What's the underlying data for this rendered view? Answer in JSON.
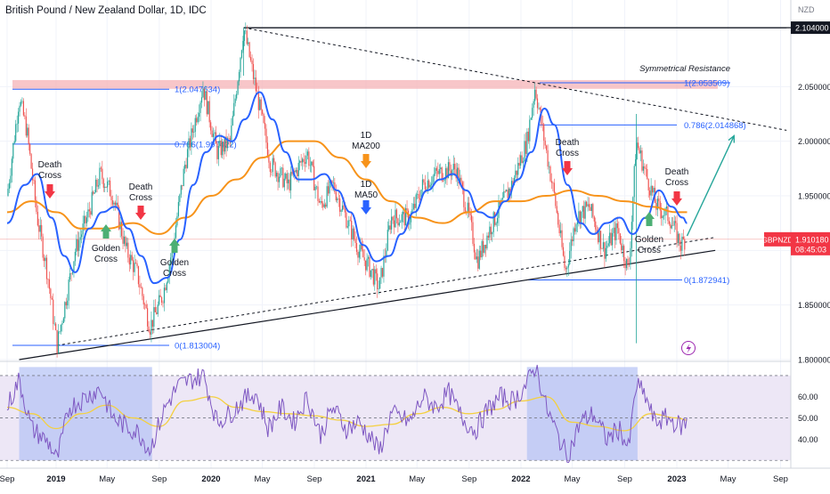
{
  "header": {
    "title": "British Pound / New Zealand Dollar, 1D, IDC",
    "currency": "NZD"
  },
  "colors": {
    "price_up": "#26a69a",
    "price_down": "#ef5350",
    "ma50": "#2962ff",
    "ma200": "#f7931a",
    "fib": "#2962ff",
    "resistance_zone": "#f6b3b7",
    "rsi": "#7e57c2",
    "rsi_ma": "#f4d03f",
    "rsi_band": "#ede7f6",
    "rsi_highlight": "#b3c2f5",
    "arrow_down": "#f23645",
    "arrow_up": "#4caf74",
    "projection": "#26a69a",
    "price_badge": "#f23645"
  },
  "chart_data": [
    {
      "type": "candlestick",
      "title": "British Pound / New Zealand Dollar, 1D, IDC",
      "series_names": [
        "1D MA200",
        "1D MA50"
      ],
      "x_ticks": [
        "Sep",
        "2019",
        "May",
        "Sep",
        "2020",
        "May",
        "Sep",
        "2021",
        "May",
        "Sep",
        "2022",
        "May",
        "Sep",
        "2023",
        "May",
        "Sep"
      ],
      "y_ticks": [
        "1.800000",
        "1.850000",
        "1.900000",
        "1.950000",
        "2.000000",
        "2.050000",
        "2.104000"
      ],
      "ylim": [
        1.8,
        2.104
      ],
      "grid": true,
      "price_approx": [
        [
          "2018-09-01",
          1.95
        ],
        [
          "2018-10-01",
          2.04
        ],
        [
          "2018-10-20",
          2.01
        ],
        [
          "2018-11-15",
          1.93
        ],
        [
          "2018-12-10",
          1.88
        ],
        [
          "2019-01-03",
          1.813
        ],
        [
          "2019-02-15",
          1.9
        ],
        [
          "2019-03-15",
          1.93
        ],
        [
          "2019-04-15",
          1.97
        ],
        [
          "2019-05-15",
          1.95
        ],
        [
          "2019-06-15",
          1.9
        ],
        [
          "2019-07-10",
          1.88
        ],
        [
          "2019-08-10",
          1.83
        ],
        [
          "2019-09-10",
          1.86
        ],
        [
          "2019-10-01",
          1.9
        ],
        [
          "2019-11-01",
          1.98
        ],
        [
          "2019-12-13",
          2.05
        ],
        [
          "2020-01-15",
          1.99
        ],
        [
          "2020-02-15",
          2.0
        ],
        [
          "2020-03-18",
          2.104
        ],
        [
          "2020-04-20",
          2.04
        ],
        [
          "2020-05-20",
          1.98
        ],
        [
          "2020-07-01",
          1.96
        ],
        [
          "2020-08-15",
          1.99
        ],
        [
          "2020-09-15",
          1.94
        ],
        [
          "2020-10-15",
          1.96
        ],
        [
          "2020-11-15",
          1.93
        ],
        [
          "2020-12-15",
          1.9
        ],
        [
          "2021-01-15",
          1.88
        ],
        [
          "2021-02-01",
          1.865
        ],
        [
          "2021-03-01",
          1.93
        ],
        [
          "2021-04-15",
          1.93
        ],
        [
          "2021-05-15",
          1.96
        ],
        [
          "2021-06-15",
          1.97
        ],
        [
          "2021-08-01",
          1.975
        ],
        [
          "2021-09-01",
          1.93
        ],
        [
          "2021-09-20",
          1.89
        ],
        [
          "2021-10-20",
          1.92
        ],
        [
          "2021-12-10",
          1.96
        ],
        [
          "2022-01-15",
          2.0
        ],
        [
          "2022-02-03",
          2.05
        ],
        [
          "2022-02-25",
          2.0
        ],
        [
          "2022-03-20",
          1.95
        ],
        [
          "2022-04-15",
          1.88
        ],
        [
          "2022-05-10",
          1.93
        ],
        [
          "2022-06-10",
          1.94
        ],
        [
          "2022-07-15",
          1.9
        ],
        [
          "2022-08-15",
          1.92
        ],
        [
          "2022-09-10",
          1.88
        ],
        [
          "2022-09-28",
          2.0
        ],
        [
          "2022-10-20",
          1.97
        ],
        [
          "2022-11-15",
          1.94
        ],
        [
          "2022-12-15",
          1.93
        ],
        [
          "2023-01-10",
          1.905
        ],
        [
          "2023-01-20",
          1.91
        ]
      ],
      "ma50_approx": [
        [
          "2018-09-01",
          1.925
        ],
        [
          "2018-10-15",
          1.96
        ],
        [
          "2018-11-15",
          1.97
        ],
        [
          "2018-12-20",
          1.93
        ],
        [
          "2019-01-20",
          1.895
        ],
        [
          "2019-02-15",
          1.88
        ],
        [
          "2019-03-20",
          1.92
        ],
        [
          "2019-04-20",
          1.935
        ],
        [
          "2019-05-20",
          1.94
        ],
        [
          "2019-06-20",
          1.92
        ],
        [
          "2019-07-20",
          1.895
        ],
        [
          "2019-08-20",
          1.87
        ],
        [
          "2019-09-20",
          1.875
        ],
        [
          "2019-10-20",
          1.91
        ],
        [
          "2019-11-20",
          1.96
        ],
        [
          "2019-12-20",
          1.99
        ],
        [
          "2020-01-20",
          2.005
        ],
        [
          "2020-02-20",
          2.0
        ],
        [
          "2020-03-20",
          2.02
        ],
        [
          "2020-04-25",
          2.045
        ],
        [
          "2020-05-25",
          2.02
        ],
        [
          "2020-06-25",
          1.99
        ],
        [
          "2020-07-25",
          1.965
        ],
        [
          "2020-08-25",
          1.965
        ],
        [
          "2020-09-25",
          1.97
        ],
        [
          "2020-10-25",
          1.955
        ],
        [
          "2020-11-25",
          1.935
        ],
        [
          "2020-12-25",
          1.905
        ],
        [
          "2021-01-25",
          1.89
        ],
        [
          "2021-02-25",
          1.895
        ],
        [
          "2021-03-25",
          1.915
        ],
        [
          "2021-04-25",
          1.935
        ],
        [
          "2021-05-25",
          1.955
        ],
        [
          "2021-06-25",
          1.965
        ],
        [
          "2021-07-25",
          1.97
        ],
        [
          "2021-08-25",
          1.955
        ],
        [
          "2021-09-25",
          1.935
        ],
        [
          "2021-10-25",
          1.93
        ],
        [
          "2021-11-25",
          1.945
        ],
        [
          "2021-12-25",
          1.965
        ],
        [
          "2022-01-25",
          1.99
        ],
        [
          "2022-02-25",
          2.03
        ],
        [
          "2022-03-20",
          2.015
        ],
        [
          "2022-04-20",
          1.96
        ],
        [
          "2022-05-20",
          1.925
        ],
        [
          "2022-06-20",
          1.915
        ],
        [
          "2022-07-20",
          1.925
        ],
        [
          "2022-08-20",
          1.93
        ],
        [
          "2022-09-20",
          1.915
        ],
        [
          "2022-10-20",
          1.93
        ],
        [
          "2022-11-20",
          1.955
        ],
        [
          "2022-12-20",
          1.94
        ],
        [
          "2023-01-15",
          1.93
        ],
        [
          "2023-01-25",
          1.925
        ]
      ],
      "ma200_approx": [
        [
          "2018-09-01",
          1.935
        ],
        [
          "2018-11-01",
          1.945
        ],
        [
          "2019-01-01",
          1.935
        ],
        [
          "2019-03-01",
          1.92
        ],
        [
          "2019-05-01",
          1.92
        ],
        [
          "2019-07-01",
          1.925
        ],
        [
          "2019-09-01",
          1.915
        ],
        [
          "2019-11-01",
          1.93
        ],
        [
          "2020-01-01",
          1.95
        ],
        [
          "2020-03-01",
          1.965
        ],
        [
          "2020-05-01",
          1.985
        ],
        [
          "2020-07-01",
          2.0
        ],
        [
          "2020-09-01",
          2.0
        ],
        [
          "2020-11-01",
          1.985
        ],
        [
          "2021-01-01",
          1.965
        ],
        [
          "2021-03-01",
          1.945
        ],
        [
          "2021-05-01",
          1.93
        ],
        [
          "2021-07-01",
          1.925
        ],
        [
          "2021-09-01",
          1.935
        ],
        [
          "2021-11-01",
          1.945
        ],
        [
          "2022-01-01",
          1.945
        ],
        [
          "2022-03-01",
          1.95
        ],
        [
          "2022-05-01",
          1.955
        ],
        [
          "2022-07-01",
          1.95
        ],
        [
          "2022-09-01",
          1.945
        ],
        [
          "2022-11-01",
          1.94
        ],
        [
          "2023-01-01",
          1.935
        ],
        [
          "2023-01-25",
          1.935
        ]
      ],
      "current_price": "1.910180",
      "price_label": "GBPNZD",
      "countdown": "08:45:03",
      "resistance_zone": [
        2.048,
        2.056
      ],
      "fib_levels": [
        {
          "label": "1(2.047634)",
          "value": 2.047634
        },
        {
          "label": "0.786(1.997422)",
          "value": 1.997422
        },
        {
          "label": "0(1.813004)",
          "value": 1.813004
        },
        {
          "label": "1(2.053509)",
          "value": 2.053509
        },
        {
          "label": "0.786(2.014868)",
          "value": 2.014868
        },
        {
          "label": "0(1.872941)",
          "value": 1.872941
        }
      ],
      "annotations": [
        {
          "text": "Symmetrical Resistance"
        },
        {
          "text": "1D MA200"
        },
        {
          "text": "1D MA50"
        },
        {
          "text": "Death Cross",
          "signal": "down"
        },
        {
          "text": "Death Cross",
          "signal": "down"
        },
        {
          "text": "Death Cross",
          "signal": "down"
        },
        {
          "text": "Death Cross",
          "signal": "down"
        },
        {
          "text": "Golden Cross",
          "signal": "up"
        },
        {
          "text": "Golden Cross",
          "signal": "up"
        },
        {
          "text": "Golden Cross",
          "signal": "up"
        }
      ],
      "trendlines": [
        {
          "style": "solid",
          "from": [
            "2020-03-18",
            2.104
          ],
          "to": [
            "2023-09-15",
            2.104
          ]
        },
        {
          "style": "dashed",
          "from": [
            "2020-03-18",
            2.104
          ],
          "to": [
            "2023-09-15",
            2.01
          ]
        },
        {
          "style": "dashed",
          "from": [
            "2019-01-03",
            1.813
          ],
          "to": [
            "2023-04-01",
            1.912
          ]
        },
        {
          "style": "solid",
          "from": [
            "2018-10-01",
            1.8
          ],
          "to": [
            "2023-04-01",
            1.9
          ]
        }
      ],
      "projection": [
        [
          "2023-01-25",
          1.91
        ],
        [
          "2023-05-15",
          2.005
        ]
      ]
    },
    {
      "type": "line",
      "name": "RSI",
      "y_ticks": [
        "40.00",
        "50.00",
        "60.00"
      ],
      "ylim": [
        28,
        75
      ],
      "levels": [
        70,
        50,
        30
      ],
      "rsi_approx": [
        [
          "2018-09-01",
          55
        ],
        [
          "2018-10-01",
          68
        ],
        [
          "2018-11-01",
          45
        ],
        [
          "2018-12-15",
          38
        ],
        [
          "2019-01-03",
          30
        ],
        [
          "2019-02-01",
          55
        ],
        [
          "2019-03-15",
          60
        ],
        [
          "2019-04-15",
          64
        ],
        [
          "2019-05-15",
          50
        ],
        [
          "2019-06-15",
          46
        ],
        [
          "2019-07-15",
          43
        ],
        [
          "2019-08-10",
          35
        ],
        [
          "2019-09-15",
          55
        ],
        [
          "2019-10-15",
          65
        ],
        [
          "2019-11-15",
          68
        ],
        [
          "2019-12-15",
          70
        ],
        [
          "2020-01-15",
          48
        ],
        [
          "2020-02-15",
          52
        ],
        [
          "2020-03-15",
          58
        ],
        [
          "2020-04-15",
          62
        ],
        [
          "2020-05-15",
          45
        ],
        [
          "2020-06-15",
          55
        ],
        [
          "2020-07-15",
          48
        ],
        [
          "2020-08-15",
          60
        ],
        [
          "2020-09-15",
          42
        ],
        [
          "2020-10-15",
          55
        ],
        [
          "2020-11-15",
          45
        ],
        [
          "2020-12-15",
          48
        ],
        [
          "2021-01-15",
          40
        ],
        [
          "2021-02-01",
          34
        ],
        [
          "2021-03-01",
          52
        ],
        [
          "2021-04-15",
          48
        ],
        [
          "2021-05-15",
          60
        ],
        [
          "2021-06-15",
          55
        ],
        [
          "2021-07-15",
          62
        ],
        [
          "2021-08-15",
          50
        ],
        [
          "2021-09-15",
          44
        ],
        [
          "2021-10-15",
          54
        ],
        [
          "2021-11-15",
          60
        ],
        [
          "2021-12-15",
          58
        ],
        [
          "2022-01-15",
          66
        ],
        [
          "2022-02-05",
          75
        ],
        [
          "2022-03-01",
          55
        ],
        [
          "2022-04-01",
          40
        ],
        [
          "2022-04-20",
          32
        ],
        [
          "2022-05-20",
          48
        ],
        [
          "2022-06-20",
          52
        ],
        [
          "2022-07-20",
          40
        ],
        [
          "2022-08-20",
          45
        ],
        [
          "2022-09-10",
          35
        ],
        [
          "2022-09-28",
          66
        ],
        [
          "2022-10-20",
          60
        ],
        [
          "2022-11-10",
          48
        ],
        [
          "2022-12-10",
          50
        ],
        [
          "2023-01-10",
          46
        ],
        [
          "2023-01-25",
          48
        ]
      ],
      "rsi_ma_approx": [
        [
          "2018-09-01",
          55
        ],
        [
          "2018-11-01",
          52
        ],
        [
          "2019-01-01",
          45
        ],
        [
          "2019-03-01",
          52
        ],
        [
          "2019-05-01",
          56
        ],
        [
          "2019-07-01",
          50
        ],
        [
          "2019-09-01",
          46
        ],
        [
          "2019-11-01",
          58
        ],
        [
          "2020-01-01",
          60
        ],
        [
          "2020-03-01",
          55
        ],
        [
          "2020-05-01",
          53
        ],
        [
          "2020-07-01",
          52
        ],
        [
          "2020-09-01",
          51
        ],
        [
          "2020-11-01",
          49
        ],
        [
          "2021-01-01",
          46
        ],
        [
          "2021-03-01",
          47
        ],
        [
          "2021-05-01",
          52
        ],
        [
          "2021-07-01",
          55
        ],
        [
          "2021-09-01",
          52
        ],
        [
          "2021-11-01",
          54
        ],
        [
          "2022-01-01",
          58
        ],
        [
          "2022-03-01",
          60
        ],
        [
          "2022-05-01",
          48
        ],
        [
          "2022-07-01",
          46
        ],
        [
          "2022-09-01",
          44
        ],
        [
          "2022-11-01",
          52
        ],
        [
          "2023-01-01",
          50
        ],
        [
          "2023-01-25",
          49
        ]
      ],
      "highlight_ranges": [
        [
          "2018-10-01",
          "2019-08-15"
        ],
        [
          "2022-01-15",
          "2022-10-01"
        ]
      ]
    }
  ]
}
